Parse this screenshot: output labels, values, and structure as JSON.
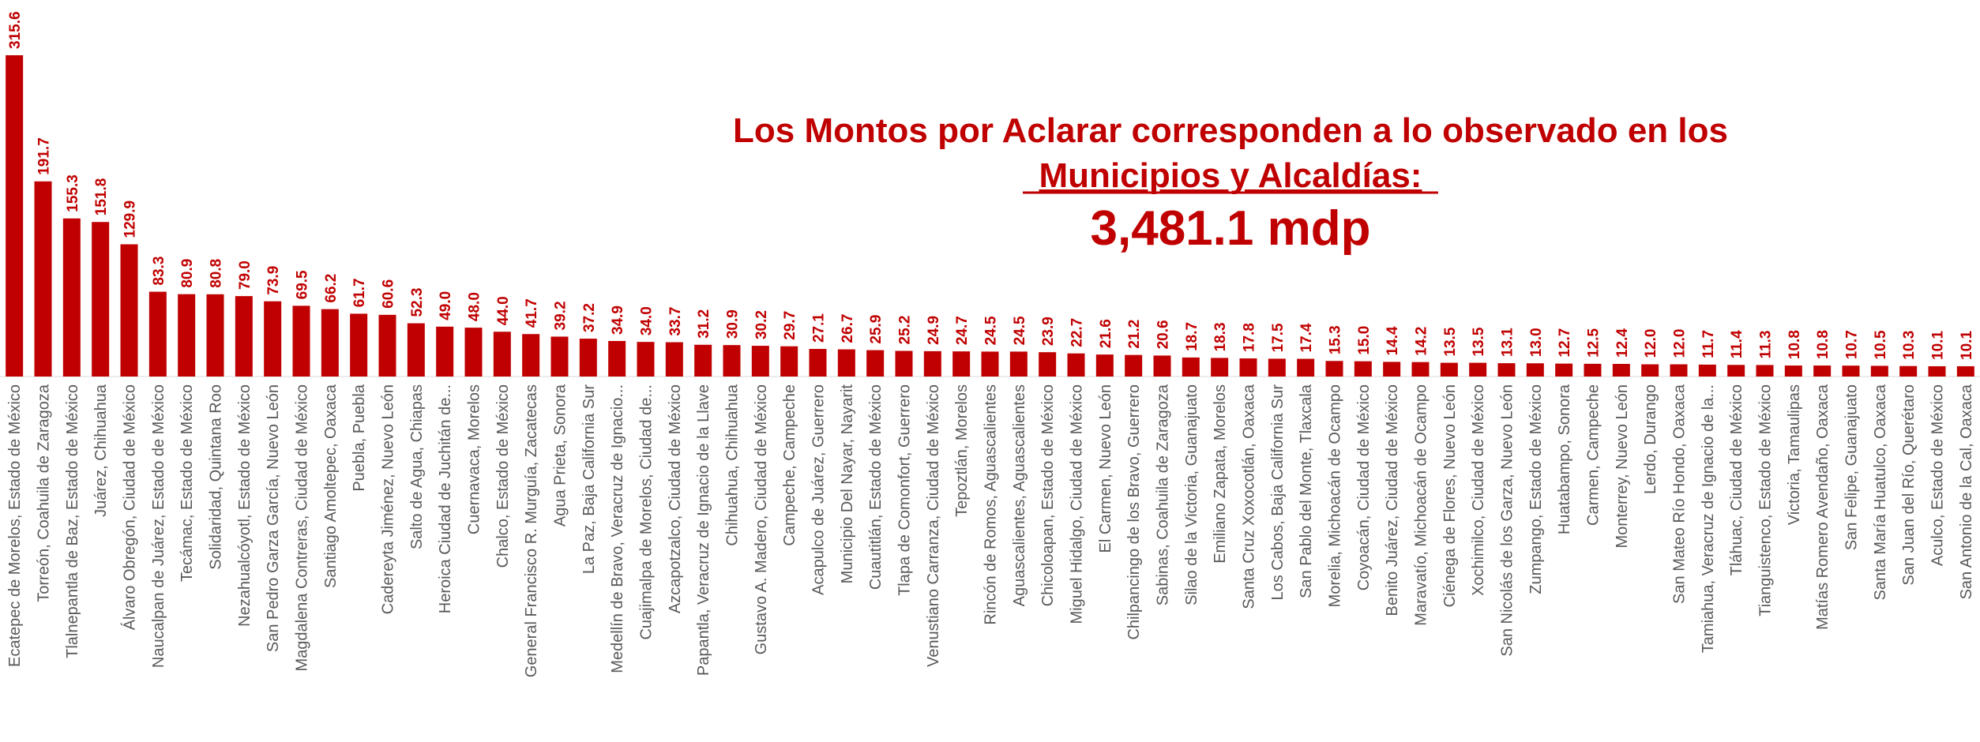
{
  "chart_data": {
    "type": "bar",
    "title": [
      "Los Montos por Aclarar corresponden a lo observado en los",
      "Municipios y Alcaldías:"
    ],
    "total": "3,481.1 mdp",
    "color": "#c00000",
    "categories": [
      "Ecatepec de Morelos, Estado de México",
      "Torreón, Coahuila de Zaragoza",
      "Tlalnepantla de Baz, Estado de México",
      "Juárez, Chihuahua",
      "Álvaro Obregón, Ciudad de México",
      "Naucalpan de Juárez, Estado de México",
      "Tecámac, Estado de México",
      "Solidaridad, Quintana Roo",
      "Nezahualcóyotl, Estado de México",
      "San Pedro Garza García, Nuevo León",
      "Magdalena Contreras, Ciudad de México",
      "Santiago Amoltepec, Oaxaca",
      "Puebla, Puebla",
      "Cadereyta Jiménez, Nuevo León",
      "Salto de Agua, Chiapas",
      "Heroica Ciudad de Juchitán de...",
      "Cuernavaca, Morelos",
      "Chalco, Estado de México",
      "General Francisco R. Murguía, Zacatecas",
      "Agua Prieta, Sonora",
      "La Paz, Baja California Sur",
      "Medellín de Bravo, Veracruz de Ignacio...",
      "Cuajimalpa de Morelos, Ciudad de...",
      "Azcapotzalco, Ciudad de México",
      "Papantla, Veracruz de Ignacio de la Llave",
      "Chihuahua, Chihuahua",
      "Gustavo A. Madero, Ciudad de México",
      "Campeche, Campeche",
      "Acapulco de Juárez, Guerrero",
      "Municipio Del Nayar, Nayarit",
      "Cuautitlán, Estado de México",
      "Tlapa de Comonfort, Guerrero",
      "Venustiano Carranza, Ciudad de México",
      "Tepoztlán, Morelos",
      "Rincón de Romos, Aguascalientes",
      "Aguascalientes, Aguascalientes",
      "Chicoloapan, Estado de México",
      "Miguel Hidalgo, Ciudad de México",
      "El Carmen, Nuevo León",
      "Chilpancingo de los Bravo, Guerrero",
      "Sabinas, Coahuila de Zaragoza",
      "Silao de la Victoria, Guanajuato",
      "Emiliano Zapata, Morelos",
      "Santa Cruz Xoxocotlán, Oaxaca",
      "Los Cabos, Baja California Sur",
      "San Pablo del Monte, Tlaxcala",
      "Morelia, Michoacán de Ocampo",
      "Coyoacán, Ciudad de México",
      "Benito Juárez, Ciudad de México",
      "Maravatío, Michoacán de Ocampo",
      "Ciénega de Flores, Nuevo León",
      "Xochimilco, Ciudad de México",
      "San Nicolás de los Garza, Nuevo León",
      "Zumpango, Estado de México",
      "Huatabampo, Sonora",
      "Carmen, Campeche",
      "Monterrey, Nuevo León",
      "Lerdo, Durango",
      "San Mateo Río Hondo, Oaxaca",
      "Tamiahua, Veracruz de Ignacio de la...",
      "Tláhuac, Ciudad de México",
      "Tianguistenco, Estado de México",
      "Victoria, Tamaulipas",
      "Matías Romero Avendaño, Oaxaca",
      "San Felipe, Guanajuato",
      "Santa María Huatulco, Oaxaca",
      "San Juan del Río, Querétaro",
      "Aculco, Estado de México",
      "San Antonio de la Cal, Oaxaca"
    ],
    "values": [
      315.6,
      191.7,
      155.3,
      151.8,
      129.9,
      83.3,
      80.9,
      80.8,
      79.0,
      73.9,
      69.5,
      66.2,
      61.7,
      60.6,
      52.3,
      49.0,
      48.0,
      44.0,
      41.7,
      39.2,
      37.2,
      34.9,
      34.0,
      33.7,
      31.2,
      30.9,
      30.2,
      29.7,
      27.1,
      26.7,
      25.9,
      25.2,
      24.9,
      24.7,
      24.5,
      24.5,
      23.9,
      22.7,
      21.6,
      21.2,
      20.6,
      18.7,
      18.3,
      17.8,
      17.5,
      17.4,
      15.3,
      15.0,
      14.4,
      14.2,
      13.5,
      13.5,
      13.1,
      13.0,
      12.7,
      12.5,
      12.4,
      12.0,
      12.0,
      11.7,
      11.4,
      11.3,
      10.8,
      10.8,
      10.7,
      10.5,
      10.3,
      10.1,
      10.1
    ],
    "value_labels": [
      "315.6",
      "191.7",
      "155.3",
      "151.8",
      "129.9",
      "83.3",
      "80.9",
      "80.8",
      "79.0",
      "73.9",
      "69.5",
      "66.2",
      "61.7",
      "60.6",
      "52.3",
      "49.0",
      "48.0",
      "44.0",
      "41.7",
      "39.2",
      "37.2",
      "34.9",
      "34.0",
      "33.7",
      "31.2",
      "30.9",
      "30.2",
      "29.7",
      "27.1",
      "26.7",
      "25.9",
      "25.2",
      "24.9",
      "24.7",
      "24.5",
      "24.5",
      "23.9",
      "22.7",
      "21.6",
      "21.2",
      "20.6",
      "18.7",
      "18.3",
      "17.8",
      "17.5",
      "17.4",
      "15.3",
      "15.0",
      "14.4",
      "14.2",
      "13.5",
      "13.5",
      "13.1",
      "13.0",
      "12.7",
      "12.5",
      "12.4",
      "12.0",
      "12.0",
      "11.7",
      "11.4",
      "11.3",
      "10.8",
      "10.8",
      "10.7",
      "10.5",
      "10.3",
      "10.1",
      "10.1"
    ]
  }
}
